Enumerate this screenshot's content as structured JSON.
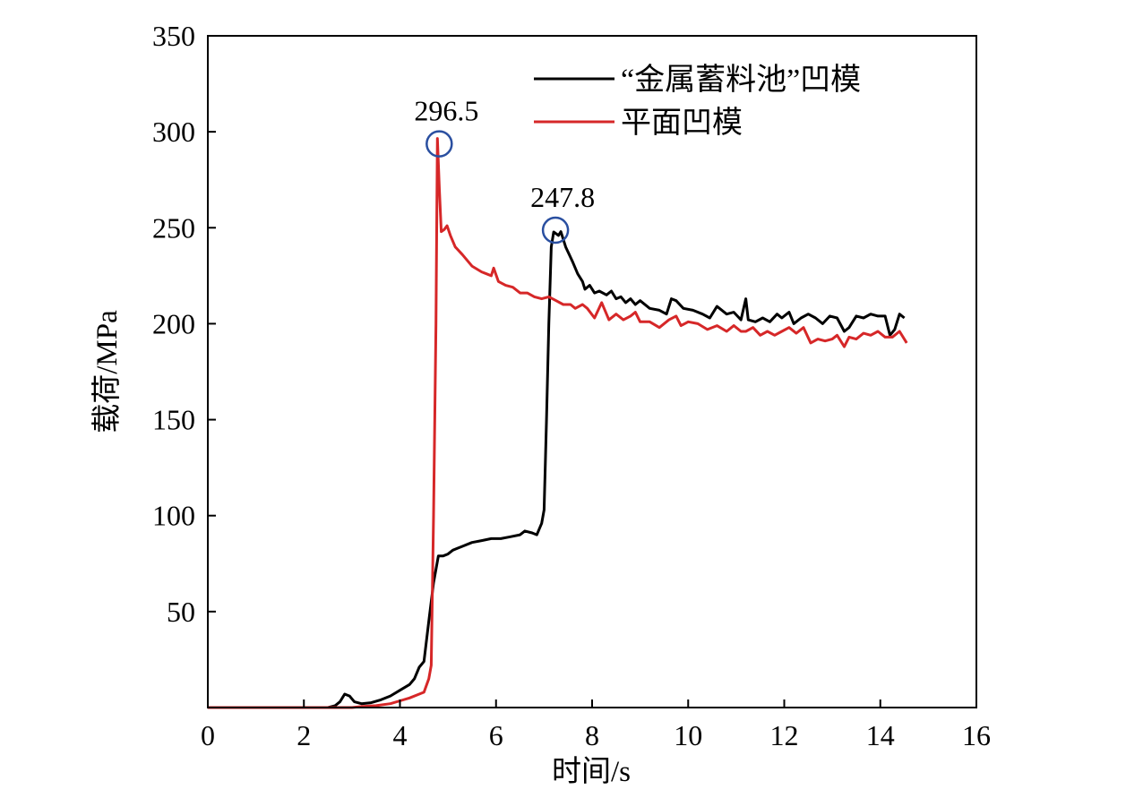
{
  "chart_data": {
    "type": "line",
    "title": "",
    "xlabel": "时间/s",
    "ylabel": "载荷/MPa",
    "xlim": [
      0,
      16
    ],
    "ylim": [
      0,
      350
    ],
    "xticks": [
      0,
      2,
      4,
      6,
      8,
      10,
      12,
      14,
      16
    ],
    "yticks": [
      50,
      100,
      150,
      200,
      250,
      300,
      350
    ],
    "x_tick_labels": [
      "0",
      "2",
      "4",
      "6",
      "8",
      "10",
      "12",
      "14",
      "16"
    ],
    "y_tick_labels": [
      "50",
      "100",
      "150",
      "200",
      "250",
      "300",
      "350"
    ],
    "grid": false,
    "legend_position": "top-right",
    "series": [
      {
        "name": "“金属蓄料池”凹模",
        "color": "#000000",
        "points": [
          [
            0,
            0
          ],
          [
            2.5,
            0
          ],
          [
            2.65,
            1
          ],
          [
            2.75,
            3
          ],
          [
            2.85,
            7
          ],
          [
            2.95,
            6
          ],
          [
            3.05,
            3
          ],
          [
            3.2,
            2
          ],
          [
            3.4,
            2.5
          ],
          [
            3.6,
            4
          ],
          [
            3.8,
            6
          ],
          [
            4.0,
            9
          ],
          [
            4.2,
            12
          ],
          [
            4.3,
            15
          ],
          [
            4.4,
            21
          ],
          [
            4.5,
            24
          ],
          [
            4.6,
            45
          ],
          [
            4.7,
            65
          ],
          [
            4.8,
            79
          ],
          [
            4.9,
            79
          ],
          [
            5.0,
            80
          ],
          [
            5.1,
            82
          ],
          [
            5.3,
            84
          ],
          [
            5.5,
            86
          ],
          [
            5.7,
            87
          ],
          [
            5.9,
            88
          ],
          [
            6.1,
            88
          ],
          [
            6.3,
            89
          ],
          [
            6.5,
            90
          ],
          [
            6.6,
            92
          ],
          [
            6.75,
            91
          ],
          [
            6.85,
            90
          ],
          [
            6.95,
            96
          ],
          [
            7.0,
            103
          ],
          [
            7.05,
            150
          ],
          [
            7.1,
            200
          ],
          [
            7.15,
            240
          ],
          [
            7.2,
            247.8
          ],
          [
            7.3,
            246
          ],
          [
            7.35,
            248
          ],
          [
            7.45,
            240
          ],
          [
            7.6,
            232
          ],
          [
            7.7,
            226
          ],
          [
            7.8,
            222
          ],
          [
            7.85,
            218
          ],
          [
            7.95,
            220
          ],
          [
            8.05,
            216
          ],
          [
            8.15,
            217
          ],
          [
            8.3,
            215
          ],
          [
            8.4,
            217
          ],
          [
            8.5,
            213
          ],
          [
            8.6,
            214
          ],
          [
            8.7,
            211
          ],
          [
            8.8,
            213
          ],
          [
            8.9,
            210
          ],
          [
            9.0,
            212
          ],
          [
            9.2,
            208
          ],
          [
            9.4,
            207
          ],
          [
            9.55,
            205
          ],
          [
            9.65,
            213
          ],
          [
            9.75,
            212
          ],
          [
            9.9,
            208
          ],
          [
            10.1,
            207
          ],
          [
            10.3,
            205
          ],
          [
            10.45,
            203
          ],
          [
            10.6,
            209
          ],
          [
            10.8,
            205
          ],
          [
            10.95,
            206
          ],
          [
            11.1,
            202
          ],
          [
            11.2,
            213
          ],
          [
            11.25,
            202
          ],
          [
            11.4,
            201
          ],
          [
            11.55,
            203
          ],
          [
            11.7,
            201
          ],
          [
            11.85,
            205
          ],
          [
            11.95,
            203
          ],
          [
            12.1,
            206
          ],
          [
            12.2,
            200
          ],
          [
            12.35,
            203
          ],
          [
            12.5,
            205
          ],
          [
            12.65,
            203
          ],
          [
            12.8,
            200
          ],
          [
            12.95,
            204
          ],
          [
            13.1,
            203
          ],
          [
            13.25,
            196
          ],
          [
            13.35,
            198
          ],
          [
            13.5,
            204
          ],
          [
            13.65,
            203
          ],
          [
            13.8,
            205
          ],
          [
            13.95,
            204
          ],
          [
            14.1,
            204
          ],
          [
            14.2,
            194
          ],
          [
            14.3,
            197
          ],
          [
            14.4,
            205
          ],
          [
            14.5,
            203
          ]
        ]
      },
      {
        "name": "平面凹模",
        "color": "#d62728",
        "points": [
          [
            0,
            0
          ],
          [
            3.0,
            0
          ],
          [
            3.2,
            0.5
          ],
          [
            3.5,
            1
          ],
          [
            3.8,
            2
          ],
          [
            4.0,
            3.5
          ],
          [
            4.2,
            5
          ],
          [
            4.4,
            7
          ],
          [
            4.5,
            8
          ],
          [
            4.6,
            15
          ],
          [
            4.65,
            22
          ],
          [
            4.7,
            100
          ],
          [
            4.75,
            200
          ],
          [
            4.78,
            296.5
          ],
          [
            4.82,
            270
          ],
          [
            4.86,
            248
          ],
          [
            4.92,
            249
          ],
          [
            4.98,
            251
          ],
          [
            5.05,
            246
          ],
          [
            5.15,
            240
          ],
          [
            5.3,
            236
          ],
          [
            5.5,
            230
          ],
          [
            5.7,
            227
          ],
          [
            5.8,
            226
          ],
          [
            5.9,
            225
          ],
          [
            5.95,
            229
          ],
          [
            6.05,
            222
          ],
          [
            6.2,
            220
          ],
          [
            6.35,
            219
          ],
          [
            6.5,
            216
          ],
          [
            6.65,
            216
          ],
          [
            6.8,
            214
          ],
          [
            6.95,
            213
          ],
          [
            7.1,
            214
          ],
          [
            7.25,
            212
          ],
          [
            7.4,
            210
          ],
          [
            7.55,
            210
          ],
          [
            7.65,
            208
          ],
          [
            7.8,
            210
          ],
          [
            7.9,
            208
          ],
          [
            8.05,
            203
          ],
          [
            8.2,
            211
          ],
          [
            8.35,
            202
          ],
          [
            8.5,
            205
          ],
          [
            8.65,
            202
          ],
          [
            8.8,
            204
          ],
          [
            8.9,
            206
          ],
          [
            9.0,
            201
          ],
          [
            9.2,
            201
          ],
          [
            9.4,
            198
          ],
          [
            9.6,
            202
          ],
          [
            9.75,
            204
          ],
          [
            9.85,
            199
          ],
          [
            10.0,
            201
          ],
          [
            10.2,
            200
          ],
          [
            10.4,
            197
          ],
          [
            10.6,
            199
          ],
          [
            10.8,
            196
          ],
          [
            10.95,
            199
          ],
          [
            11.1,
            196
          ],
          [
            11.2,
            196
          ],
          [
            11.35,
            198
          ],
          [
            11.5,
            194
          ],
          [
            11.65,
            196
          ],
          [
            11.8,
            194
          ],
          [
            11.95,
            196
          ],
          [
            12.1,
            198
          ],
          [
            12.25,
            195
          ],
          [
            12.4,
            198
          ],
          [
            12.55,
            190
          ],
          [
            12.7,
            192
          ],
          [
            12.85,
            191
          ],
          [
            13.0,
            192
          ],
          [
            13.1,
            194
          ],
          [
            13.25,
            188
          ],
          [
            13.35,
            193
          ],
          [
            13.5,
            192
          ],
          [
            13.65,
            195
          ],
          [
            13.8,
            194
          ],
          [
            13.95,
            196
          ],
          [
            14.1,
            193
          ],
          [
            14.25,
            193
          ],
          [
            14.4,
            196
          ],
          [
            14.55,
            190
          ]
        ]
      }
    ],
    "annotations": [
      {
        "series": "“金属蓄料池”凹模",
        "x": 7.2,
        "y": 247.8,
        "text": "247.8",
        "marker": "circle",
        "marker_color": "#2a4fa0"
      },
      {
        "series": "平面凹模",
        "x": 4.78,
        "y": 296.5,
        "text": "296.5",
        "marker": "circle",
        "marker_color": "#2a4fa0"
      }
    ]
  }
}
